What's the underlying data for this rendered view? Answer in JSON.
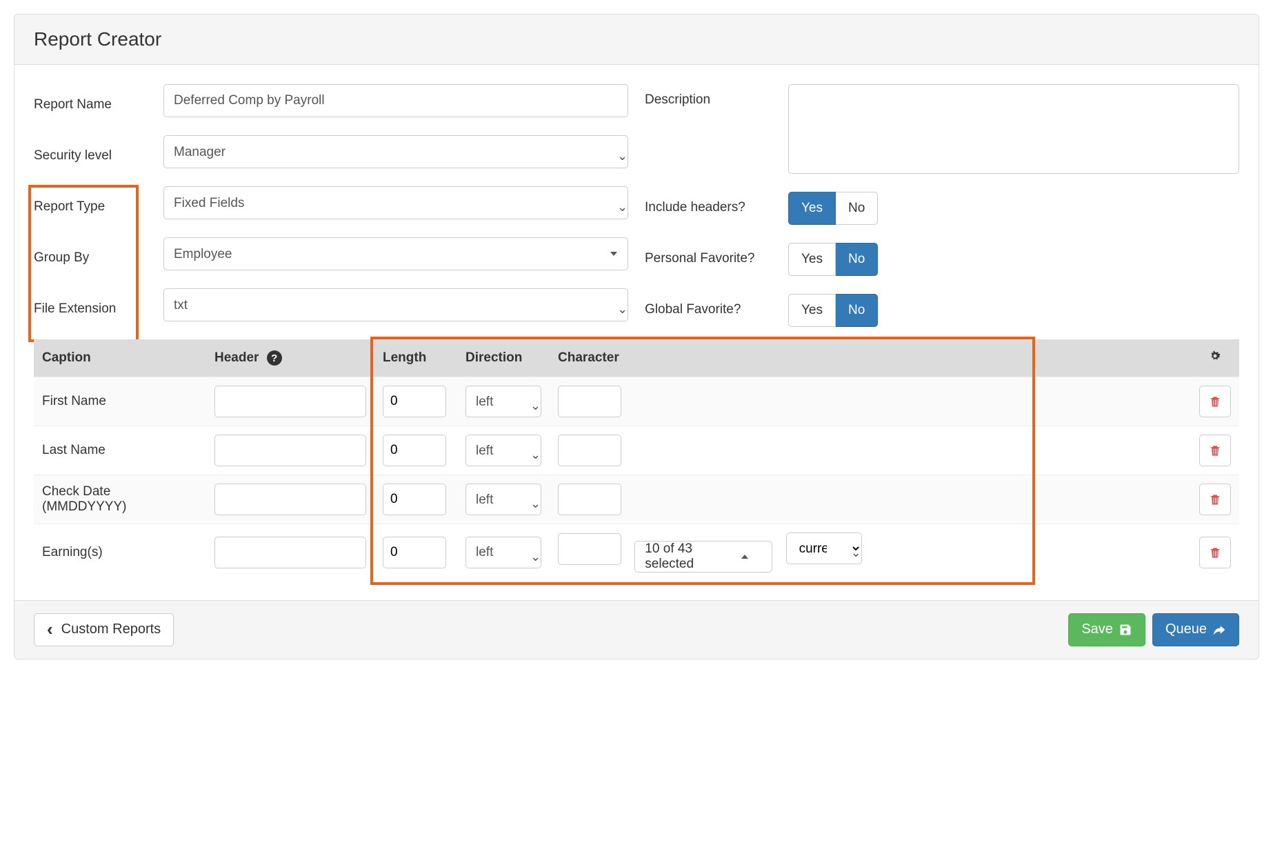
{
  "title": "Report Creator",
  "labels": {
    "report_name": "Report Name",
    "security_level": "Security level",
    "report_type": "Report Type",
    "group_by": "Group By",
    "file_extension": "File Extension",
    "description": "Description",
    "include_headers": "Include headers?",
    "personal_favorite": "Personal Favorite?",
    "global_favorite": "Global Favorite?"
  },
  "values": {
    "report_name": "Deferred Comp by Payroll",
    "security_level": "Manager",
    "report_type": "Fixed Fields",
    "group_by": "Employee",
    "file_extension": "txt",
    "description": ""
  },
  "toggles": {
    "yes": "Yes",
    "no": "No",
    "include_headers_active": "yes",
    "personal_favorite_active": "no",
    "global_favorite_active": "no"
  },
  "table": {
    "headers": {
      "caption": "Caption",
      "header": "Header",
      "length": "Length",
      "direction": "Direction",
      "character": "Character"
    },
    "rows": [
      {
        "caption": "First Name",
        "header": "",
        "length": "0",
        "direction": "left",
        "character": ""
      },
      {
        "caption": "Last Name",
        "header": "",
        "length": "0",
        "direction": "left",
        "character": ""
      },
      {
        "caption": "Check Date (MMDDYYYY)",
        "header": "",
        "length": "0",
        "direction": "left",
        "character": ""
      },
      {
        "caption": "Earning(s)",
        "header": "",
        "length": "0",
        "direction": "left",
        "character": "",
        "extra_select": "10 of 43 selected",
        "extra_select2": "currer"
      }
    ]
  },
  "footer": {
    "custom_reports": "Custom Reports",
    "save": "Save",
    "queue": "Queue"
  },
  "colors": {
    "primary": "#337ab7",
    "success": "#5cb85c",
    "danger": "#d9534f",
    "highlight": "#e8641b",
    "header_bg": "#dcdcdc"
  }
}
